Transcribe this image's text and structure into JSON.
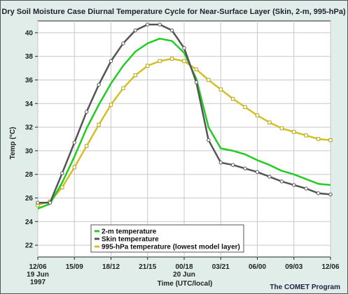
{
  "chart_data": {
    "type": "line",
    "title": "Dry Soil Moisture Case Diurnal Temperature Cycle for Near-Surface Layer (Skin, 2-m, 995-hPa)",
    "ylabel": "Temp (°C)",
    "xlabel": "Time (UTC/local)",
    "credit": "The COMET Program",
    "ylim": [
      21,
      41
    ],
    "xlim": [
      0,
      24
    ],
    "y_ticks": [
      22,
      24,
      26,
      28,
      30,
      32,
      34,
      36,
      38,
      40
    ],
    "x_ticks": [
      {
        "x": 0,
        "lines": [
          "12/06",
          "19 Jun",
          "1997"
        ]
      },
      {
        "x": 3,
        "lines": [
          "15/09"
        ]
      },
      {
        "x": 6,
        "lines": [
          "18/12"
        ]
      },
      {
        "x": 9,
        "lines": [
          "21/15"
        ]
      },
      {
        "x": 12,
        "lines": [
          "00/18",
          "20 Jun"
        ]
      },
      {
        "x": 15,
        "lines": [
          "03/21"
        ]
      },
      {
        "x": 18,
        "lines": [
          "06/00"
        ]
      },
      {
        "x": 21,
        "lines": [
          "09/03"
        ]
      },
      {
        "x": 24,
        "lines": [
          "12/06"
        ]
      }
    ],
    "grid": true,
    "legend_position": "bottom-left",
    "x": [
      0,
      1,
      2,
      3,
      4,
      5,
      6,
      7,
      8,
      9,
      10,
      11,
      12,
      13,
      14,
      15,
      16,
      17,
      18,
      19,
      20,
      21,
      22,
      23,
      24
    ],
    "series": [
      {
        "name": "2-m temperature",
        "color": "#22cc22",
        "marker": "none",
        "values": [
          25.1,
          25.5,
          27.3,
          29.5,
          31.9,
          33.9,
          35.7,
          37.2,
          38.4,
          39.1,
          39.5,
          39.3,
          38.3,
          36.1,
          32.0,
          30.2,
          30.0,
          29.7,
          29.2,
          28.8,
          28.3,
          28.0,
          27.6,
          27.2,
          27.1
        ]
      },
      {
        "name": "Skin temperature",
        "color": "#555555",
        "marker": "circle",
        "values": [
          25.6,
          25.6,
          28.1,
          30.7,
          33.3,
          35.6,
          37.6,
          39.1,
          40.2,
          40.7,
          40.7,
          40.2,
          38.7,
          35.8,
          30.9,
          29.0,
          28.8,
          28.5,
          28.2,
          27.8,
          27.4,
          27.1,
          26.8,
          26.4,
          26.3
        ]
      },
      {
        "name": "995-hPa temperature (lowest model layer)",
        "color": "#d4c020",
        "marker": "square",
        "values": [
          25.4,
          25.7,
          26.9,
          28.6,
          30.4,
          32.2,
          33.9,
          35.3,
          36.4,
          37.2,
          37.6,
          37.8,
          37.6,
          36.9,
          36.0,
          35.2,
          34.4,
          33.7,
          33.0,
          32.4,
          31.9,
          31.6,
          31.3,
          31.0,
          30.9
        ]
      }
    ]
  }
}
